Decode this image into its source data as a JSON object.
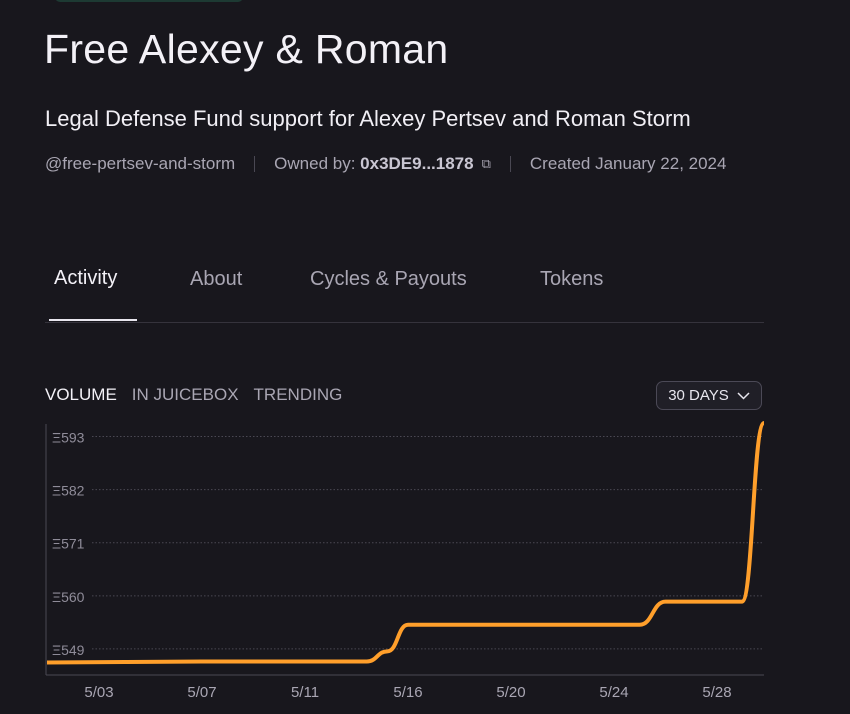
{
  "project": {
    "title": "Free Alexey & Roman",
    "description": "Legal Defense Fund support for Alexey Pertsev and Roman Storm",
    "handle": "@free-pertsev-and-storm",
    "owned_by_label": "Owned by:",
    "owner_address": "0x3DE9...1878",
    "created": "Created January 22, 2024"
  },
  "tabs": [
    {
      "label": "Activity",
      "active": true
    },
    {
      "label": "About"
    },
    {
      "label": "Cycles & Payouts"
    },
    {
      "label": "Tokens"
    }
  ],
  "chart_tabs": [
    {
      "label": "VOLUME",
      "active": true
    },
    {
      "label": "IN JUICEBOX"
    },
    {
      "label": "TRENDING"
    }
  ],
  "range_selector": {
    "value": "30 DAYS"
  },
  "colors": {
    "line": "#ff9f2b",
    "background": "#18171d",
    "accent_badge": "#1d3a33"
  },
  "chart_data": {
    "type": "line",
    "title": "",
    "xlabel": "",
    "ylabel": "",
    "currency_symbol": "Ξ",
    "x_ticks": [
      "5/03",
      "5/07",
      "5/11",
      "5/16",
      "5/20",
      "5/24",
      "5/28"
    ],
    "y_ticks": [
      549,
      560,
      571,
      582,
      593
    ],
    "y_tick_labels": [
      "Ξ549",
      "Ξ560",
      "Ξ571",
      "Ξ582",
      "Ξ593"
    ],
    "ylim": [
      543.6,
      596
    ],
    "grid": "horizontal dotted",
    "legend": "none",
    "series": [
      {
        "points": [
          {
            "x": "5/01",
            "y": 546.2
          },
          {
            "x": "5/07",
            "y": 546.4
          },
          {
            "x": "5/14",
            "y": 546.4
          },
          {
            "x": "5/15",
            "y": 548.5
          },
          {
            "x": "5/16",
            "y": 554.0
          },
          {
            "x": "5/25",
            "y": 554.0
          },
          {
            "x": "5/26",
            "y": 558.8
          },
          {
            "x": "5/29",
            "y": 558.8
          },
          {
            "x": "5/30",
            "y": 595.8
          }
        ]
      }
    ]
  }
}
